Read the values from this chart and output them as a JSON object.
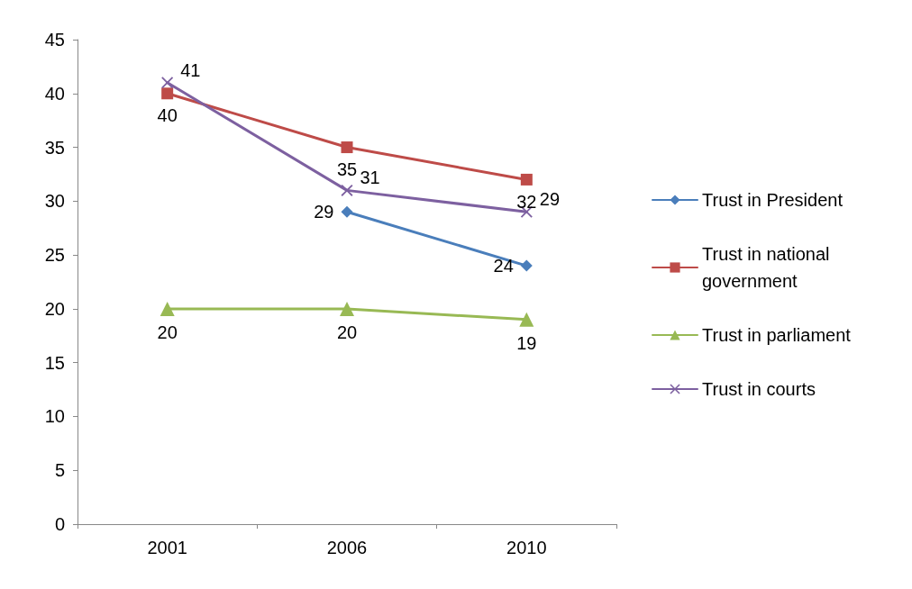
{
  "chart_data": {
    "type": "line",
    "categories": [
      "2001",
      "2006",
      "2010"
    ],
    "series": [
      {
        "name": "Trust in President",
        "color": "#4a7ebb",
        "marker": "diamond",
        "values": [
          null,
          29,
          24
        ]
      },
      {
        "name": "Trust in national government",
        "color": "#be4b48",
        "marker": "square",
        "values": [
          40,
          35,
          32
        ]
      },
      {
        "name": "Trust in parliament",
        "color": "#98b954",
        "marker": "triangle",
        "values": [
          20,
          20,
          19
        ]
      },
      {
        "name": "Trust in courts",
        "color": "#7d60a0",
        "marker": "cross",
        "values": [
          41,
          31,
          29
        ]
      }
    ],
    "ylim": [
      0,
      45
    ],
    "yticks": [
      0,
      5,
      10,
      15,
      20,
      25,
      30,
      35,
      40,
      45
    ],
    "grid": false,
    "legend": "right",
    "data_labels": true,
    "line_style": "solid"
  }
}
